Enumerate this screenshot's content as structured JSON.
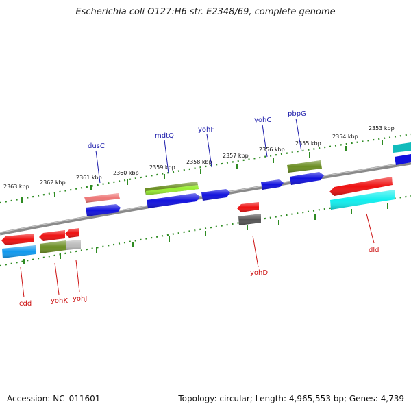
{
  "title": "Escherichia coli O127:H6 str. E2348/69, complete genome",
  "footer": {
    "accession": "Accession: NC_011601",
    "summary": "Topology: circular; Length: 4,965,553 bp; Genes: 4,739"
  },
  "colors": {
    "backbone": "#8a8a8a",
    "ticks": "#2e8b22",
    "label_forward": "#1a1aaa",
    "label_reverse": "#cc1111",
    "red": "#ee1111",
    "salmon": "#ee7777",
    "blue": "#1111dd",
    "olive": "#6b8e23",
    "lime": "#99ee33",
    "cyan": "#11eeee",
    "teal": "#11bbbb",
    "sky": "#1199ee",
    "gray": "#555555",
    "lightgray": "#bbbbbb"
  },
  "scale_labels": [
    "2363 kbp",
    "2362 kbp",
    "2361 kbp",
    "2360 kbp",
    "2359 kbp",
    "2358 kbp",
    "2357 kbp",
    "2356 kbp",
    "2355 kbp",
    "2354 kbp",
    "2353 kbp"
  ],
  "gene_labels_forward": [
    "dusC",
    "mdtQ",
    "yohF",
    "yohC",
    "pbpG"
  ],
  "gene_labels_reverse": [
    "cdd",
    "yohK",
    "yohJ",
    "yohD",
    "dld"
  ]
}
